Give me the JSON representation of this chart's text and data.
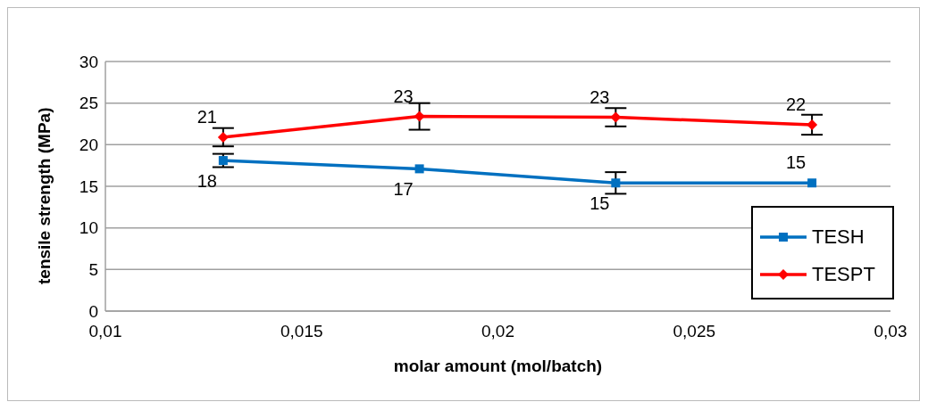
{
  "chart_data": {
    "type": "line",
    "xlabel": "molar amount (mol/batch)",
    "ylabel": "tensile strength (MPa)",
    "x": [
      0.013,
      0.018,
      0.023,
      0.028
    ],
    "xlim": [
      0.01,
      0.03
    ],
    "xticks": [
      {
        "value": 0.01,
        "label": "0,01"
      },
      {
        "value": 0.015,
        "label": "0,015"
      },
      {
        "value": 0.02,
        "label": "0,02"
      },
      {
        "value": 0.025,
        "label": "0,025"
      },
      {
        "value": 0.03,
        "label": "0,03"
      }
    ],
    "ylim": [
      0,
      30
    ],
    "yticks": [
      0,
      5,
      10,
      15,
      20,
      25,
      30
    ],
    "grid": "y",
    "legend": "bottom right",
    "marker": "square",
    "line_style": "solid",
    "series": [
      {
        "name": "TESH",
        "color": "#0070c0",
        "marker": "square",
        "values": [
          18.1,
          17.1,
          15.4,
          15.4
        ],
        "errors": [
          0.8,
          null,
          1.3,
          null
        ],
        "value_labels": [
          "18",
          "17",
          "15",
          "15"
        ]
      },
      {
        "name": "TESPT",
        "color": "#ff0000",
        "marker": "diamond",
        "values": [
          20.9,
          23.4,
          23.3,
          22.4
        ],
        "errors": [
          1.1,
          1.6,
          1.1,
          1.2
        ],
        "value_labels": [
          "21",
          "23",
          "23",
          "22"
        ]
      }
    ]
  }
}
